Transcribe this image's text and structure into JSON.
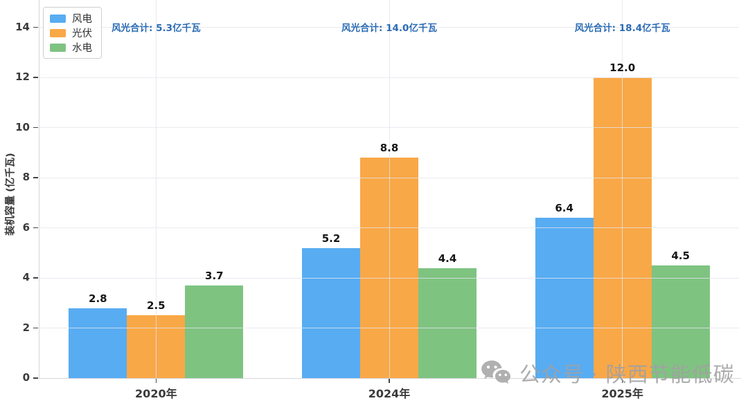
{
  "chart_data": {
    "type": "bar",
    "categories": [
      "2020年",
      "2024年",
      "2025年"
    ],
    "series": [
      {
        "key": "wind",
        "name": "风电",
        "color": "#58acf2",
        "values": [
          2.8,
          5.2,
          6.4
        ]
      },
      {
        "key": "solar",
        "name": "光伏",
        "color": "#f9a847",
        "values": [
          2.5,
          8.8,
          12.0
        ]
      },
      {
        "key": "hydro",
        "name": "水电",
        "color": "#7fc381",
        "values": [
          3.7,
          4.4,
          4.5
        ]
      }
    ],
    "annotations": [
      "风光合计: 5.3亿千瓦",
      "风光合计: 14.0亿千瓦",
      "风光合计: 18.4亿千瓦"
    ],
    "annotation_color": "#2b6cb5",
    "title": "",
    "xlabel": "",
    "ylabel": "装机容量 (亿千瓦)",
    "yticks": [
      0,
      2,
      4,
      6,
      8,
      10,
      12,
      14
    ],
    "ylim": [
      0,
      15.1
    ],
    "grid": true,
    "legend_position": "top-left",
    "value_label_decimals": 1
  },
  "watermark": {
    "icon": "wechat-icon",
    "text": "公众号 · 陕西节能低碳",
    "color": "#a1a1a1"
  }
}
